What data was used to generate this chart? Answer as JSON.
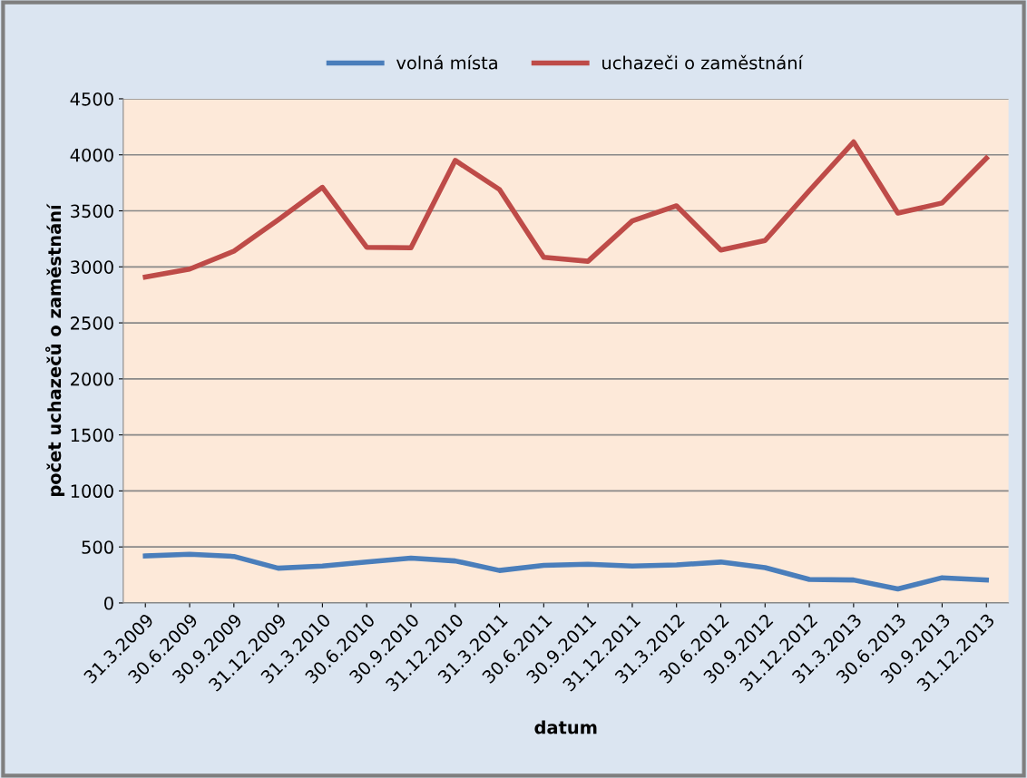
{
  "chart_data": {
    "type": "line",
    "xlabel": "datum",
    "ylabel": "počet uchazečů o zaměstnání",
    "categories": [
      "31.3.2009",
      "30.6.2009",
      "30.9.2009",
      "31.12.2009",
      "31.3.2010",
      "30.6.2010",
      "30.9.2010",
      "31.12.2010",
      "31.3.2011",
      "30.6.2011",
      "30.9.2011",
      "31.12.2011",
      "31.3.2012",
      "30.6.2012",
      "30.9.2012",
      "31.12.2012",
      "31.3.2013",
      "30.6.2013",
      "30.9.2013",
      "31.12.2013"
    ],
    "series": [
      {
        "name": "volná místa",
        "color": "#4a7ebb",
        "values": [
          420,
          435,
          415,
          310,
          330,
          365,
          400,
          375,
          290,
          335,
          345,
          330,
          340,
          365,
          315,
          210,
          205,
          125,
          225,
          205
        ]
      },
      {
        "name": "uchazeči o zaměstnání",
        "color": "#be4b48",
        "values": [
          2910,
          2980,
          3140,
          3420,
          3710,
          3175,
          3170,
          3950,
          3690,
          3085,
          3050,
          3410,
          3545,
          3150,
          3235,
          3680,
          4115,
          3480,
          3570,
          3970
        ]
      }
    ],
    "ylim": [
      0,
      4500
    ],
    "yticks": [
      0,
      500,
      1000,
      1500,
      2000,
      2500,
      3000,
      3500,
      4000,
      4500
    ],
    "grid": "y",
    "legend": "top",
    "marker": "none",
    "line_style": "solid"
  }
}
